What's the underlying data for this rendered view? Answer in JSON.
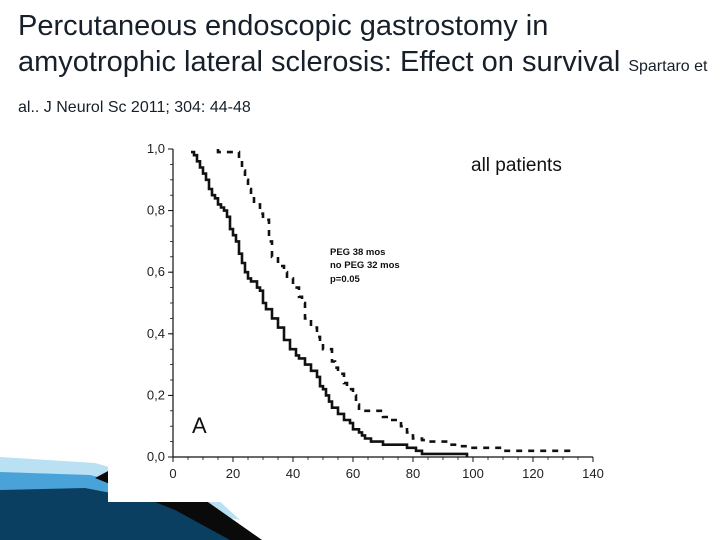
{
  "slide": {
    "title_main": "Percutaneous endoscopic gastrostomy in amyotrophic lateral sclerosis: Effect on survival",
    "citation": "Spartaro et al.. J Neurol Sc 2011; 304: 44-48"
  },
  "colors": {
    "accent_dark": "#0b3f62",
    "accent_mid": "#1f78b4",
    "accent_light": "#7fc4e6",
    "line": "#111111"
  },
  "chart_data": {
    "type": "line",
    "title": "all patients",
    "panel_label": "A",
    "xlabel": "",
    "ylabel": "",
    "xlim": [
      0,
      140
    ],
    "ylim": [
      0,
      1
    ],
    "x_ticks": [
      "0",
      "20",
      "40",
      "60",
      "80",
      "100",
      "120",
      "140"
    ],
    "x_tick_values": [
      0,
      20,
      40,
      60,
      80,
      100,
      120,
      140
    ],
    "y_ticks": [
      "1,0",
      "0,8",
      "0,6",
      "0,4",
      "0,2",
      "0,0"
    ],
    "y_tick_values": [
      1.0,
      0.8,
      0.6,
      0.4,
      0.2,
      0.0
    ],
    "annotation_lines": [
      "PEG 38 mos",
      "no PEG 32 mos",
      "p=0.05"
    ],
    "series": [
      {
        "name": "PEG",
        "style": "dashed",
        "x": [
          15,
          15,
          22,
          23,
          24,
          25,
          26,
          27,
          29,
          30,
          32,
          33,
          35,
          37,
          38,
          40,
          42,
          43,
          44,
          46,
          48,
          49,
          50,
          53,
          54,
          55,
          57,
          58,
          60,
          61,
          62,
          70,
          72,
          76,
          77,
          78,
          79,
          80,
          83,
          85,
          92,
          95,
          98,
          110,
          132,
          132
        ],
        "y": [
          1.0,
          0.99,
          0.97,
          0.93,
          0.9,
          0.87,
          0.85,
          0.82,
          0.79,
          0.77,
          0.7,
          0.65,
          0.62,
          0.6,
          0.58,
          0.55,
          0.52,
          0.5,
          0.45,
          0.42,
          0.39,
          0.37,
          0.35,
          0.31,
          0.29,
          0.27,
          0.24,
          0.22,
          0.2,
          0.17,
          0.15,
          0.13,
          0.12,
          0.1,
          0.09,
          0.08,
          0.07,
          0.06,
          0.055,
          0.05,
          0.04,
          0.035,
          0.03,
          0.02,
          0.02,
          0.0
        ]
      },
      {
        "name": "no PEG",
        "style": "solid",
        "x": [
          6,
          7,
          8,
          9,
          10,
          11,
          12,
          13,
          14,
          15,
          16,
          17,
          18,
          19,
          20,
          21,
          22,
          23,
          24,
          25,
          26,
          28,
          29,
          30,
          31,
          33,
          35,
          37,
          39,
          41,
          42,
          44,
          46,
          48,
          49,
          50,
          51,
          52,
          53,
          55,
          57,
          59,
          60,
          62,
          63,
          64,
          66,
          70,
          78,
          81,
          83,
          98
        ],
        "y": [
          0.99,
          0.98,
          0.96,
          0.94,
          0.92,
          0.9,
          0.87,
          0.85,
          0.84,
          0.82,
          0.81,
          0.8,
          0.78,
          0.74,
          0.72,
          0.7,
          0.66,
          0.63,
          0.6,
          0.58,
          0.57,
          0.55,
          0.54,
          0.5,
          0.48,
          0.45,
          0.42,
          0.38,
          0.35,
          0.33,
          0.32,
          0.3,
          0.28,
          0.26,
          0.23,
          0.22,
          0.2,
          0.18,
          0.16,
          0.14,
          0.12,
          0.11,
          0.09,
          0.08,
          0.07,
          0.06,
          0.05,
          0.04,
          0.03,
          0.02,
          0.01,
          0.0
        ]
      }
    ]
  }
}
